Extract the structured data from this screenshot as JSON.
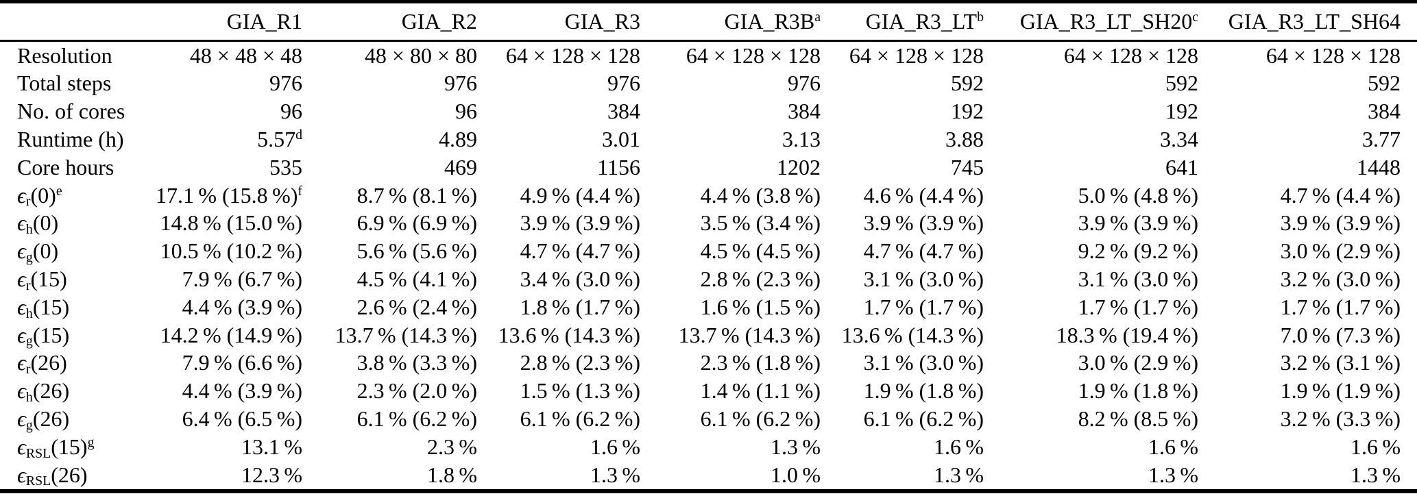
{
  "table": {
    "epsilon": "ϵ",
    "columns": [
      {
        "t": "GIA_R1",
        "sup": ""
      },
      {
        "t": "GIA_R2",
        "sup": ""
      },
      {
        "t": "GIA_R3",
        "sup": ""
      },
      {
        "t": "GIA_R3B",
        "sup": "a"
      },
      {
        "t": "GIA_R3_LT",
        "sup": "b"
      },
      {
        "t": "GIA_R3_LT_SH20",
        "sup": "c"
      },
      {
        "t": "GIA_R3_LT_SH64",
        "sup": ""
      }
    ],
    "rows": [
      {
        "label": {
          "t": "Resolution"
        },
        "cells": [
          {
            "t": "48 × 48 × 48"
          },
          {
            "t": "48 × 80 × 80"
          },
          {
            "t": "64 × 128 × 128"
          },
          {
            "t": "64 × 128 × 128"
          },
          {
            "t": "64 × 128 × 128"
          },
          {
            "t": "64 × 128 × 128"
          },
          {
            "t": "64 × 128 × 128"
          }
        ]
      },
      {
        "label": {
          "t": "Total steps"
        },
        "cells": [
          {
            "t": "976"
          },
          {
            "t": "976"
          },
          {
            "t": "976"
          },
          {
            "t": "976"
          },
          {
            "t": "592"
          },
          {
            "t": "592"
          },
          {
            "t": "592"
          }
        ]
      },
      {
        "label": {
          "t": "No. of cores"
        },
        "cells": [
          {
            "t": "96"
          },
          {
            "t": "96"
          },
          {
            "t": "384"
          },
          {
            "t": "384"
          },
          {
            "t": "192"
          },
          {
            "t": "192"
          },
          {
            "t": "384"
          }
        ]
      },
      {
        "label": {
          "t": "Runtime (h)"
        },
        "cells": [
          {
            "t": "5.57",
            "sup": "d"
          },
          {
            "t": "4.89"
          },
          {
            "t": "3.01"
          },
          {
            "t": "3.13"
          },
          {
            "t": "3.88"
          },
          {
            "t": "3.34"
          },
          {
            "t": "3.77"
          }
        ]
      },
      {
        "label": {
          "t": "Core hours"
        },
        "cells": [
          {
            "t": "535"
          },
          {
            "t": "469"
          },
          {
            "t": "1156"
          },
          {
            "t": "1202"
          },
          {
            "t": "745"
          },
          {
            "t": "641"
          },
          {
            "t": "1448"
          }
        ]
      },
      {
        "label": {
          "eps": true,
          "sub": "r",
          "t": "(0)",
          "sup": "e"
        },
        "cells": [
          {
            "t": "17.1 % (15.8 %)",
            "sup": "f"
          },
          {
            "t": "8.7 % (8.1 %)"
          },
          {
            "t": "4.9 % (4.4 %)"
          },
          {
            "t": "4.4 % (3.8 %)"
          },
          {
            "t": "4.6 % (4.4 %)"
          },
          {
            "t": "5.0 % (4.8 %)"
          },
          {
            "t": "4.7 % (4.4 %)"
          }
        ]
      },
      {
        "label": {
          "eps": true,
          "sub": "h",
          "t": "(0)"
        },
        "cells": [
          {
            "t": "14.8 % (15.0 %)"
          },
          {
            "t": "6.9 % (6.9 %)"
          },
          {
            "t": "3.9 % (3.9 %)"
          },
          {
            "t": "3.5 % (3.4 %)"
          },
          {
            "t": "3.9 % (3.9 %)"
          },
          {
            "t": "3.9 % (3.9 %)"
          },
          {
            "t": "3.9 % (3.9 %)"
          }
        ]
      },
      {
        "label": {
          "eps": true,
          "sub": "g",
          "t": "(0)"
        },
        "cells": [
          {
            "t": "10.5 % (10.2 %)"
          },
          {
            "t": "5.6 % (5.6 %)"
          },
          {
            "t": "4.7 % (4.7 %)"
          },
          {
            "t": "4.5 % (4.5 %)"
          },
          {
            "t": "4.7 % (4.7 %)"
          },
          {
            "t": "9.2 % (9.2 %)"
          },
          {
            "t": "3.0 % (2.9 %)"
          }
        ]
      },
      {
        "label": {
          "eps": true,
          "sub": "r",
          "t": "(15)"
        },
        "cells": [
          {
            "t": "7.9 % (6.7 %)"
          },
          {
            "t": "4.5 % (4.1 %)"
          },
          {
            "t": "3.4 % (3.0 %)"
          },
          {
            "t": "2.8 % (2.3 %)"
          },
          {
            "t": "3.1 % (3.0 %)"
          },
          {
            "t": "3.1 % (3.0 %)"
          },
          {
            "t": "3.2 % (3.0 %)"
          }
        ]
      },
      {
        "label": {
          "eps": true,
          "sub": "h",
          "t": "(15)"
        },
        "cells": [
          {
            "t": "4.4 % (3.9 %)"
          },
          {
            "t": "2.6 % (2.4 %)"
          },
          {
            "t": "1.8 % (1.7 %)"
          },
          {
            "t": "1.6 % (1.5 %)"
          },
          {
            "t": "1.7 % (1.7 %)"
          },
          {
            "t": "1.7 % (1.7 %)"
          },
          {
            "t": "1.7 % (1.7 %)"
          }
        ]
      },
      {
        "label": {
          "eps": true,
          "sub": "g",
          "t": "(15)"
        },
        "cells": [
          {
            "t": "14.2 % (14.9 %)"
          },
          {
            "t": "13.7 % (14.3 %)"
          },
          {
            "t": "13.6 % (14.3 %)"
          },
          {
            "t": "13.7 % (14.3 %)"
          },
          {
            "t": "13.6 % (14.3 %)"
          },
          {
            "t": "18.3 % (19.4 %)"
          },
          {
            "t": "7.0 % (7.3 %)"
          }
        ]
      },
      {
        "label": {
          "eps": true,
          "sub": "r",
          "t": "(26)"
        },
        "cells": [
          {
            "t": "7.9 % (6.6 %)"
          },
          {
            "t": "3.8 % (3.3 %)"
          },
          {
            "t": "2.8 % (2.3 %)"
          },
          {
            "t": "2.3 % (1.8 %)"
          },
          {
            "t": "3.1 % (3.0 %)"
          },
          {
            "t": "3.0 % (2.9 %)"
          },
          {
            "t": "3.2 % (3.1 %)"
          }
        ]
      },
      {
        "label": {
          "eps": true,
          "sub": "h",
          "t": "(26)"
        },
        "cells": [
          {
            "t": "4.4 % (3.9 %)"
          },
          {
            "t": "2.3 % (2.0 %)"
          },
          {
            "t": "1.5 % (1.3 %)"
          },
          {
            "t": "1.4 % (1.1 %)"
          },
          {
            "t": "1.9 % (1.8 %)"
          },
          {
            "t": "1.9 % (1.8 %)"
          },
          {
            "t": "1.9 % (1.9 %)"
          }
        ]
      },
      {
        "label": {
          "eps": true,
          "sub": "g",
          "t": "(26)"
        },
        "cells": [
          {
            "t": "6.4 % (6.5 %)"
          },
          {
            "t": "6.1 % (6.2 %)"
          },
          {
            "t": "6.1 % (6.2 %)"
          },
          {
            "t": "6.1 % (6.2 %)"
          },
          {
            "t": "6.1 % (6.2 %)"
          },
          {
            "t": "8.2 % (8.5 %)"
          },
          {
            "t": "3.2 % (3.3 %)"
          }
        ]
      },
      {
        "label": {
          "eps": true,
          "sub": "RSL",
          "t": "(15)",
          "sup": "g"
        },
        "cells": [
          {
            "t": "13.1 %"
          },
          {
            "t": "2.3 %"
          },
          {
            "t": "1.6 %"
          },
          {
            "t": "1.3 %"
          },
          {
            "t": "1.6 %"
          },
          {
            "t": "1.6 %"
          },
          {
            "t": "1.6 %"
          }
        ]
      },
      {
        "label": {
          "eps": true,
          "sub": "RSL",
          "t": "(26)"
        },
        "cells": [
          {
            "t": "12.3 %"
          },
          {
            "t": "1.8 %"
          },
          {
            "t": "1.3 %"
          },
          {
            "t": "1.0 %"
          },
          {
            "t": "1.3 %"
          },
          {
            "t": "1.3 %"
          },
          {
            "t": "1.3 %"
          }
        ]
      }
    ]
  }
}
